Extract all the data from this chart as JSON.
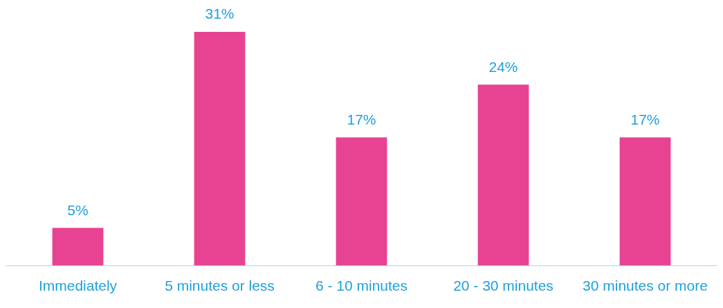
{
  "chart_data": {
    "type": "bar",
    "categories": [
      "Immediately",
      "5 minutes or less",
      "6 - 10 minutes",
      "20 - 30 minutes",
      "30 minutes or more"
    ],
    "values": [
      5,
      31,
      17,
      24,
      17
    ],
    "color": "#e84393",
    "value_labels": [
      "5%",
      "31%",
      "17%",
      "24%",
      "17%"
    ],
    "tick_labels": "x",
    "grid": false,
    "legend": false
  }
}
